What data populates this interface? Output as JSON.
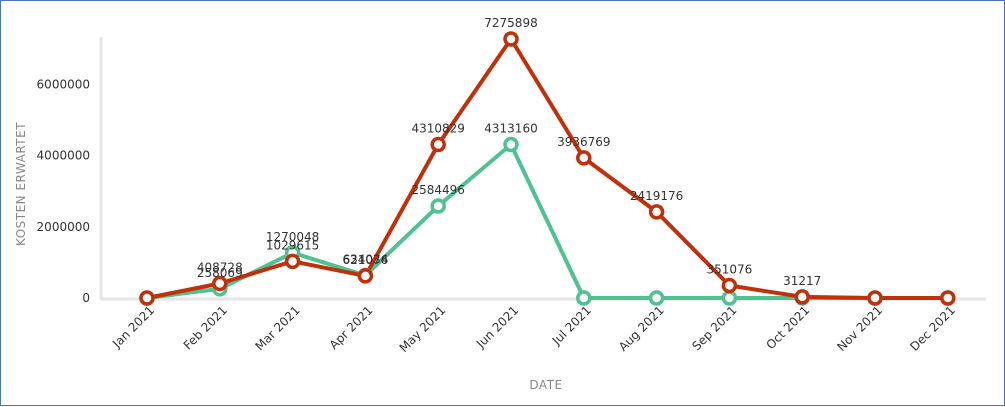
{
  "chart_data": {
    "type": "line",
    "categories": [
      "Jan 2021",
      "Feb 2021",
      "Mar 2021",
      "Apr 2021",
      "May 2021",
      "Jun 2021",
      "Jul 2021",
      "Aug 2021",
      "Sep 2021",
      "Oct 2021",
      "Nov 2021",
      "Dec 2021"
    ],
    "xlabel": "DATE",
    "ylabel": "KOSTEN ERWARTET",
    "ylim": [
      0,
      7275898
    ],
    "yticks": [
      0,
      2000000,
      4000000,
      6000000
    ],
    "ytick_labels": [
      "0",
      "2000000",
      "4000000",
      "6000000"
    ],
    "grid": false,
    "series": [
      {
        "color": "#4ec291",
        "values": [
          0,
          258069,
          1270048,
          634034,
          2584496,
          4313160,
          0,
          0,
          0,
          0,
          0,
          0
        ],
        "labels": [
          "",
          "258069",
          "1270048",
          "634034",
          "2584496",
          "4313160",
          "",
          "",
          "",
          "",
          "",
          ""
        ]
      },
      {
        "color": "#c0300a",
        "values": [
          0,
          408728,
          1029615,
          621076,
          4310829,
          7275898,
          3936769,
          2419176,
          351076,
          31217,
          0,
          0
        ],
        "labels": [
          "",
          "408728",
          "1029615",
          "621076",
          "4310829",
          "7275898",
          "3936769",
          "2419176",
          "351076",
          "31217",
          "",
          ""
        ]
      }
    ]
  }
}
